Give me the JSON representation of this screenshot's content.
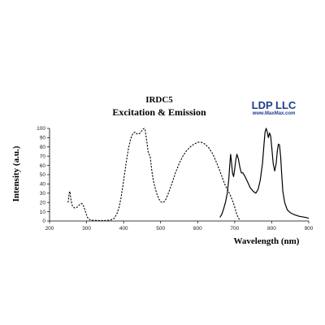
{
  "chart_data": {
    "type": "line",
    "title": "IRDC5",
    "subtitle": "Excitation & Emission",
    "xlabel": "Wavelength (nm)",
    "ylabel": "Intensity (a.u.)",
    "xlim": [
      200,
      900
    ],
    "ylim": [
      0,
      100
    ],
    "x_ticks": [
      200,
      300,
      400,
      500,
      600,
      700,
      800,
      900
    ],
    "y_ticks": [
      0,
      10,
      20,
      30,
      40,
      50,
      60,
      70,
      80,
      90,
      100
    ],
    "grid": false,
    "legend": "none",
    "series": [
      {
        "style": "dashed",
        "color": "#000000",
        "points": [
          [
            250,
            20
          ],
          [
            253,
            30
          ],
          [
            255,
            32
          ],
          [
            258,
            22
          ],
          [
            262,
            16
          ],
          [
            268,
            14
          ],
          [
            275,
            15
          ],
          [
            282,
            18
          ],
          [
            287,
            19
          ],
          [
            292,
            16
          ],
          [
            297,
            10
          ],
          [
            302,
            4
          ],
          [
            310,
            1
          ],
          [
            330,
            0.5
          ],
          [
            350,
            0.5
          ],
          [
            365,
            1
          ],
          [
            375,
            3
          ],
          [
            382,
            8
          ],
          [
            388,
            15
          ],
          [
            393,
            25
          ],
          [
            398,
            38
          ],
          [
            403,
            52
          ],
          [
            408,
            66
          ],
          [
            413,
            78
          ],
          [
            418,
            87
          ],
          [
            422,
            92
          ],
          [
            426,
            95
          ],
          [
            431,
            96
          ],
          [
            436,
            94
          ],
          [
            440,
            94
          ],
          [
            445,
            95
          ],
          [
            450,
            98
          ],
          [
            455,
            100
          ],
          [
            458,
            99
          ],
          [
            460,
            93
          ],
          [
            463,
            85
          ],
          [
            466,
            75
          ],
          [
            469,
            72
          ],
          [
            472,
            69
          ],
          [
            476,
            55
          ],
          [
            480,
            44
          ],
          [
            485,
            36
          ],
          [
            490,
            29
          ],
          [
            495,
            24
          ],
          [
            500,
            21
          ],
          [
            505,
            20
          ],
          [
            510,
            21
          ],
          [
            515,
            24
          ],
          [
            520,
            29
          ],
          [
            530,
            40
          ],
          [
            540,
            52
          ],
          [
            550,
            62
          ],
          [
            560,
            70
          ],
          [
            570,
            76
          ],
          [
            580,
            80
          ],
          [
            590,
            83
          ],
          [
            600,
            85
          ],
          [
            610,
            85
          ],
          [
            620,
            83
          ],
          [
            630,
            79
          ],
          [
            640,
            73
          ],
          [
            650,
            64
          ],
          [
            660,
            54
          ],
          [
            668,
            45
          ],
          [
            675,
            38
          ],
          [
            682,
            33
          ],
          [
            688,
            28
          ],
          [
            692,
            24
          ],
          [
            696,
            20
          ],
          [
            700,
            15
          ],
          [
            705,
            8
          ],
          [
            710,
            3
          ],
          [
            715,
            1
          ]
        ]
      },
      {
        "style": "solid",
        "color": "#000000",
        "points": [
          [
            660,
            4
          ],
          [
            665,
            7
          ],
          [
            670,
            13
          ],
          [
            675,
            20
          ],
          [
            680,
            30
          ],
          [
            684,
            45
          ],
          [
            687,
            62
          ],
          [
            689,
            72
          ],
          [
            691,
            65
          ],
          [
            694,
            52
          ],
          [
            697,
            48
          ],
          [
            700,
            56
          ],
          [
            703,
            66
          ],
          [
            706,
            72
          ],
          [
            710,
            67
          ],
          [
            714,
            58
          ],
          [
            718,
            52
          ],
          [
            722,
            52
          ],
          [
            728,
            48
          ],
          [
            735,
            42
          ],
          [
            742,
            36
          ],
          [
            750,
            32
          ],
          [
            757,
            30
          ],
          [
            763,
            34
          ],
          [
            769,
            44
          ],
          [
            775,
            62
          ],
          [
            779,
            82
          ],
          [
            782,
            96
          ],
          [
            785,
            100
          ],
          [
            788,
            96
          ],
          [
            791,
            90
          ],
          [
            794,
            95
          ],
          [
            797,
            92
          ],
          [
            800,
            80
          ],
          [
            804,
            62
          ],
          [
            808,
            54
          ],
          [
            812,
            62
          ],
          [
            815,
            75
          ],
          [
            818,
            83
          ],
          [
            821,
            82
          ],
          [
            824,
            70
          ],
          [
            827,
            50
          ],
          [
            830,
            32
          ],
          [
            835,
            20
          ],
          [
            842,
            12
          ],
          [
            850,
            9
          ],
          [
            860,
            7
          ],
          [
            875,
            5
          ],
          [
            890,
            4
          ],
          [
            900,
            3
          ]
        ]
      }
    ]
  },
  "logo": {
    "name": "LDP LLC",
    "url": "www.MaxMax.com",
    "color": "#1f3c8f"
  }
}
